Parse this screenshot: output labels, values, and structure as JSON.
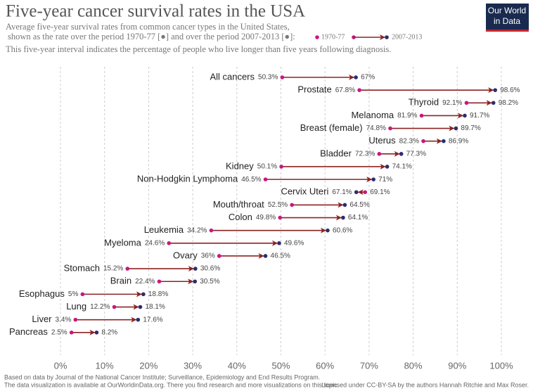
{
  "chart_data": {
    "type": "dumbbell",
    "title": "Five-year cancer survival rates in the USA",
    "subtitle": [
      "Average five-year survival rates from common cancer types in the United States,",
      "shown as the rate over the period 1970-77 [●] and over the period 2007-2013 [●]:",
      "This five-year interval indicates the percentage of people who live longer than five years following diagnosis."
    ],
    "logo": [
      "Our World",
      "in Data"
    ],
    "categories": [
      "All cancers",
      "Prostate",
      "Thyroid",
      "Melanoma",
      "Breast (female)",
      "Uterus",
      "Bladder",
      "Kidney",
      "Non-Hodgkin Lymphoma",
      "Cervix Uteri",
      "Mouth/throat",
      "Colon",
      "Leukemia",
      "Myeloma",
      "Ovary",
      "Stomach",
      "Brain",
      "Esophagus",
      "Lung",
      "Liver",
      "Pancreas"
    ],
    "series": [
      {
        "name": "1970-77",
        "color": "#c8177e",
        "values": [
          50.3,
          67.8,
          92.1,
          81.9,
          74.8,
          82.3,
          72.3,
          50.1,
          46.5,
          69.1,
          52.5,
          49.8,
          34.2,
          24.6,
          36,
          15.2,
          22.4,
          5,
          12.2,
          3.4,
          2.5
        ],
        "value_labels": [
          "50.3%",
          "67.8%",
          "92.1%",
          "81.9%",
          "74.8%",
          "82.3%",
          "72.3%",
          "50.1%",
          "46.5%",
          "69.1%",
          "52.5%",
          "49.8%",
          "34.2%",
          "24.6%",
          "36%",
          "15.2%",
          "22.4%",
          "5%",
          "12.2%",
          "3.4%",
          "2.5%"
        ]
      },
      {
        "name": "2007-2013",
        "color": "#2c2d6e",
        "values": [
          67,
          98.6,
          98.2,
          91.7,
          89.7,
          86.9,
          77.3,
          74.1,
          71,
          67.1,
          64.5,
          64.1,
          60.6,
          49.6,
          46.5,
          30.6,
          30.5,
          18.8,
          18.1,
          17.6,
          8.2
        ],
        "value_labels": [
          "67%",
          "98.6%",
          "98.2%",
          "91.7%",
          "89.7%",
          "86.9%",
          "77.3%",
          "74.1%",
          "71%",
          "67.1%",
          "64.5%",
          "64.1%",
          "60.6%",
          "49.6%",
          "46.5%",
          "30.6%",
          "30.5%",
          "18.8%",
          "18.1%",
          "17.6%",
          "8.2%"
        ]
      }
    ],
    "arrow_color": "#8b2323",
    "xlim": [
      0,
      100
    ],
    "xticks": [
      {
        "value": 0,
        "label": "0%"
      },
      {
        "value": 10,
        "label": "10%"
      },
      {
        "value": 20,
        "label": "20%"
      },
      {
        "value": 30,
        "label": "30%"
      },
      {
        "value": 40,
        "label": "40%"
      },
      {
        "value": 50,
        "label": "50%"
      },
      {
        "value": 60,
        "label": "60%"
      },
      {
        "value": 70,
        "label": "70%"
      },
      {
        "value": 80,
        "label": "80%"
      },
      {
        "value": 90,
        "label": "90%"
      },
      {
        "value": 100,
        "label": "100%"
      }
    ],
    "grid": true,
    "footer": [
      "Based on data by Journal of the National Cancer Institute; Surveillance, Epidemiology and End Results Program.",
      "The data visualization is available at OurWorldinData.org. There you find research and more visualizations on this topic.",
      "Licensed under CC-BY-SA by the authors Hannah Ritchie and Max Roser."
    ]
  }
}
